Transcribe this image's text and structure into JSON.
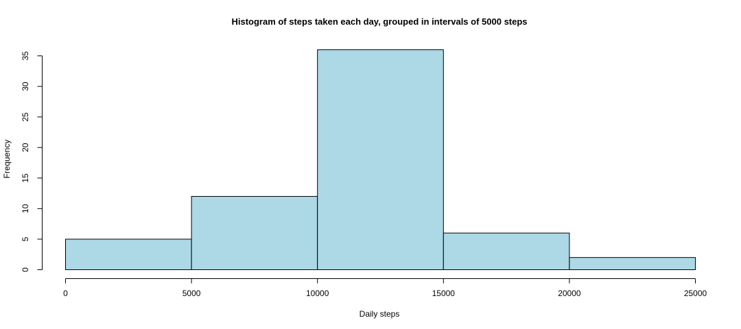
{
  "chart_data": {
    "type": "bar",
    "title": "Histogram of steps taken each day, grouped in intervals of 5000 steps",
    "xlabel": "Daily steps",
    "ylabel": "Frequency",
    "bins": [
      {
        "from": 0,
        "to": 5000,
        "count": 5
      },
      {
        "from": 5000,
        "to": 10000,
        "count": 12
      },
      {
        "from": 10000,
        "to": 15000,
        "count": 36
      },
      {
        "from": 15000,
        "to": 20000,
        "count": 6
      },
      {
        "from": 20000,
        "to": 25000,
        "count": 2
      }
    ],
    "xlim": [
      0,
      25000
    ],
    "ylim": [
      0,
      35
    ],
    "x_ticks": [
      0,
      5000,
      10000,
      15000,
      20000,
      25000
    ],
    "x_tick_labels": [
      "0",
      "5000",
      "10000",
      "15000",
      "20000",
      "25000"
    ],
    "y_ticks": [
      0,
      5,
      10,
      15,
      20,
      25,
      30,
      35
    ],
    "y_tick_labels": [
      "0",
      "5",
      "10",
      "15",
      "20",
      "25",
      "30",
      "35"
    ],
    "bar_color": "#add8e6",
    "grid": false,
    "legend": "none"
  }
}
